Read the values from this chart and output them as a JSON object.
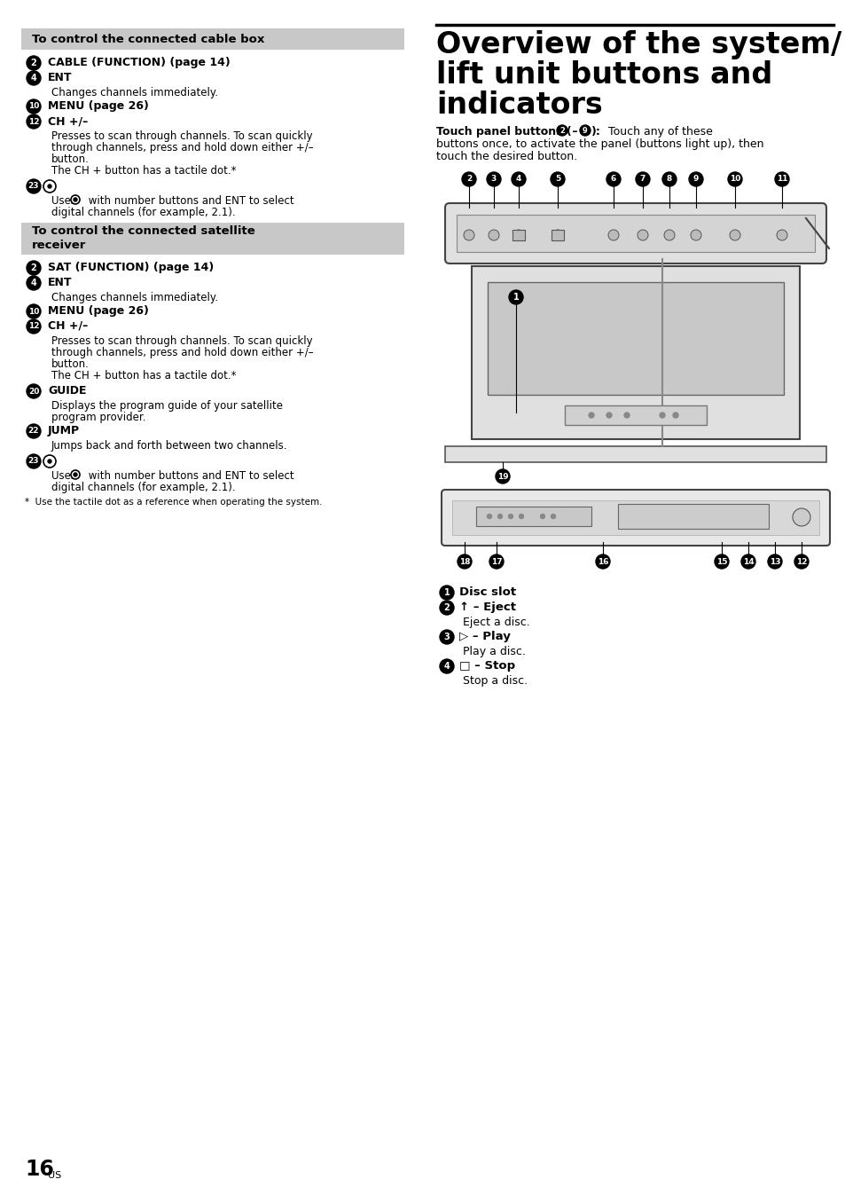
{
  "page_bg": "#ffffff",
  "cable_box_header": "To control the connected cable box",
  "satellite_header": "To control the connected satellite\nreceiver",
  "footnote": "*  Use the tactile dot as a reference when operating the system.",
  "title_line1": "Overview of the system/",
  "title_line2": "lift unit buttons and",
  "title_line3": "indicators",
  "touch_bold": "Touch panel buttons (",
  "touch_num1": "2",
  "touch_dash": " – ",
  "touch_num2": "9",
  "touch_end_bold": "):",
  "touch_normal": " Touch any of these buttons once, to activate the panel (buttons light up), then touch the desired button.",
  "page_number": "16",
  "page_sup": "US"
}
